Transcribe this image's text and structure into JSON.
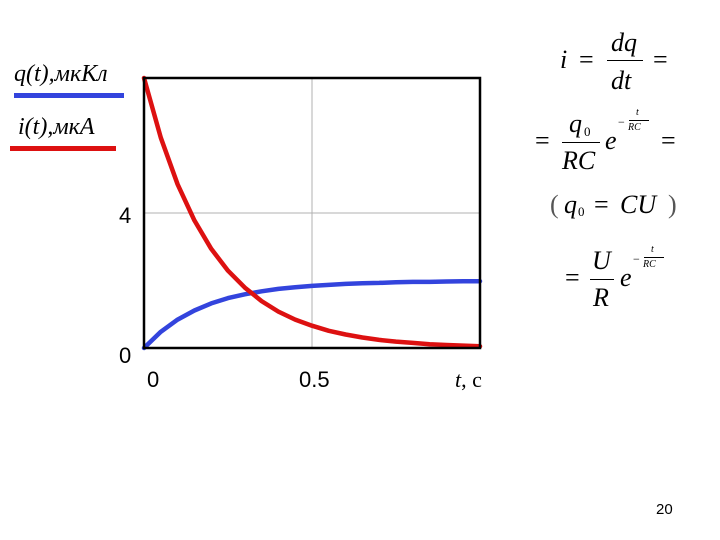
{
  "page_number": "20",
  "colors": {
    "q_series": "#3344dd",
    "i_series": "#dd1111",
    "grid": "#b0b0b0",
    "frame": "#000000"
  },
  "legend": [
    {
      "label": "q(t),мкКл",
      "color": "#3344dd"
    },
    {
      "label": "i(t),мкА",
      "color": "#dd1111"
    }
  ],
  "chart_data": {
    "type": "line",
    "title": "",
    "xlabel_symbol": "t",
    "xlabel_unit": ", с",
    "ylabel": "",
    "xlim": [
      0,
      1
    ],
    "ylim": [
      0,
      8
    ],
    "x_ticks": [
      "0",
      "0.5"
    ],
    "y_ticks": [
      "0",
      "4"
    ],
    "grid": true,
    "legend_position": "left-outside",
    "series": [
      {
        "name": "q(t),мкКл",
        "color": "#3344dd",
        "x": [
          0,
          0.05,
          0.1,
          0.15,
          0.2,
          0.25,
          0.3,
          0.35,
          0.4,
          0.45,
          0.5,
          0.55,
          0.6,
          0.65,
          0.7,
          0.75,
          0.8,
          0.85,
          0.9,
          0.95,
          1.0
        ],
        "values": [
          0,
          0.48,
          0.84,
          1.11,
          1.32,
          1.48,
          1.59,
          1.68,
          1.75,
          1.8,
          1.84,
          1.87,
          1.9,
          1.92,
          1.93,
          1.95,
          1.96,
          1.96,
          1.97,
          1.98,
          1.98
        ]
      },
      {
        "name": "i(t),мкА",
        "color": "#dd1111",
        "x": [
          0,
          0.05,
          0.1,
          0.15,
          0.2,
          0.25,
          0.3,
          0.35,
          0.4,
          0.45,
          0.5,
          0.55,
          0.6,
          0.65,
          0.7,
          0.75,
          0.8,
          0.85,
          0.9,
          0.95,
          1.0
        ],
        "values": [
          8.0,
          6.23,
          4.85,
          3.78,
          2.94,
          2.29,
          1.79,
          1.39,
          1.08,
          0.84,
          0.66,
          0.51,
          0.4,
          0.31,
          0.24,
          0.19,
          0.15,
          0.11,
          0.09,
          0.07,
          0.05
        ]
      }
    ]
  },
  "formulas": {
    "eq1": {
      "i": "i",
      "eq": "=",
      "num": "dq",
      "den": "dt",
      "eq_end": "="
    },
    "eq2": {
      "eq": "=",
      "num": "q",
      "num_sub": "0",
      "den": "RC",
      "e": "e",
      "exp_minus": "−",
      "exp_num": "t",
      "exp_den": "RC",
      "eq_end": "="
    },
    "eq3": {
      "lparen": "(",
      "q": "q",
      "q_sub": "0",
      "eq": "=",
      "rhs": "CU",
      "rparen": ")"
    },
    "eq4": {
      "eq": "=",
      "num": "U",
      "den": "R",
      "e": "e",
      "exp_minus": "−",
      "exp_num": "t",
      "exp_den": "RC"
    }
  }
}
